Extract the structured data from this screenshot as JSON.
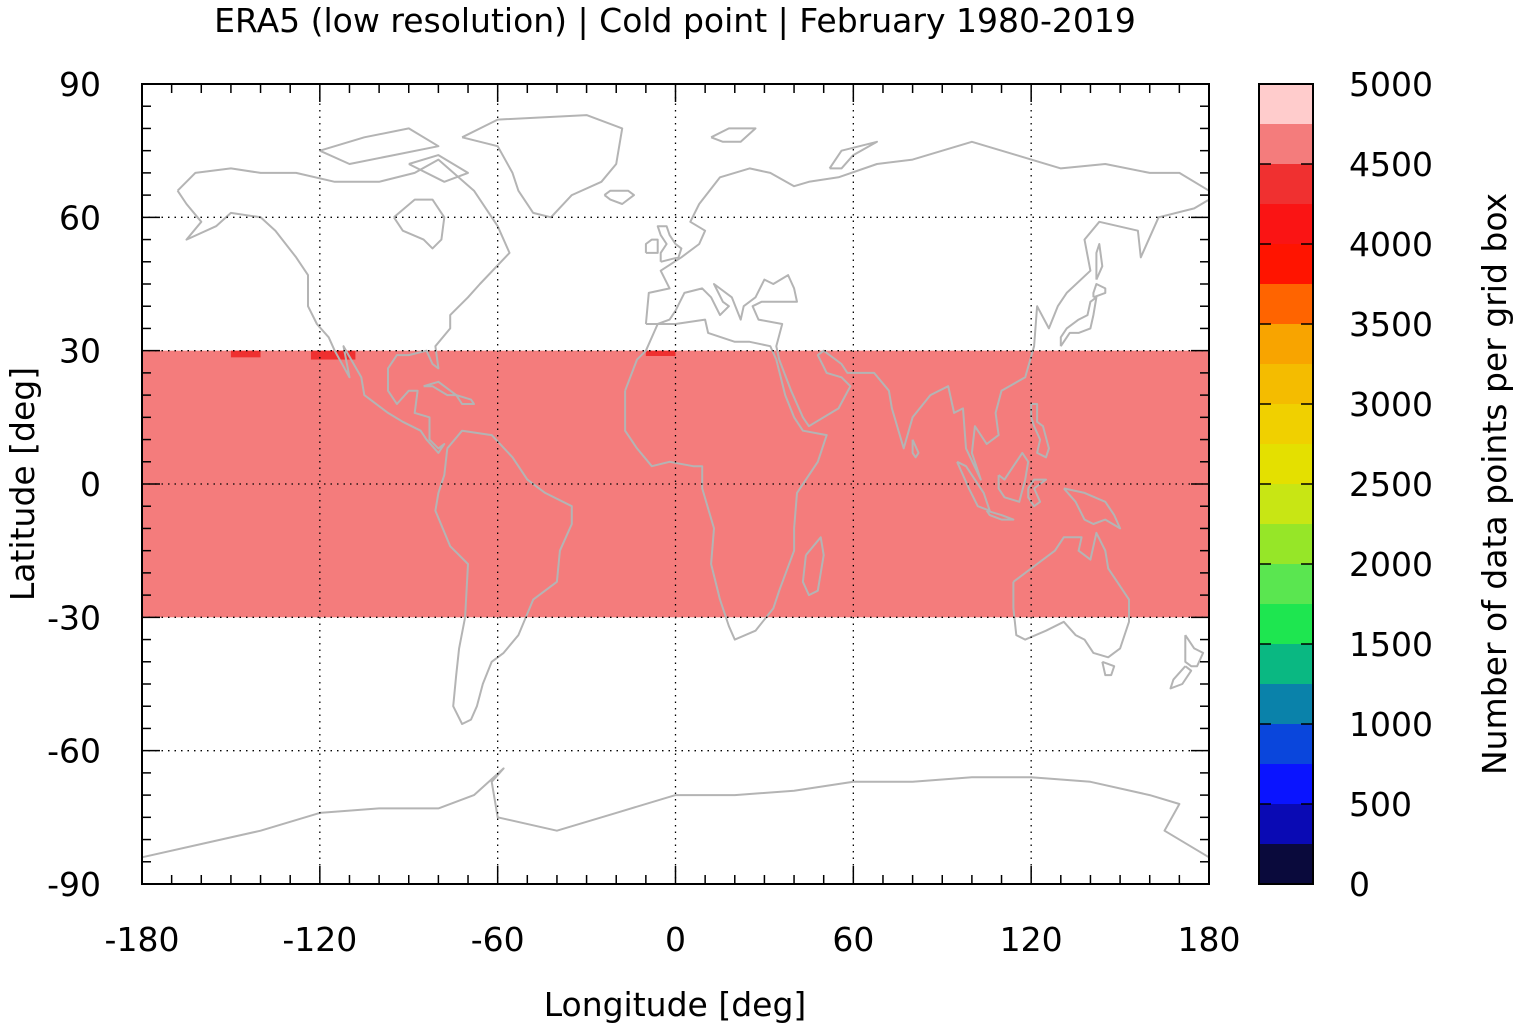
{
  "chart_data": {
    "type": "heatmap",
    "title": "ERA5 (low resolution) | Cold point | February 1980-2019",
    "xlabel": "Longitude [deg]",
    "ylabel": "Latitude [deg]",
    "xlim": [
      -180,
      180
    ],
    "ylim": [
      -90,
      90
    ],
    "x_ticks": [
      "-180",
      "-120",
      "-60",
      "0",
      "60",
      "120",
      "180"
    ],
    "y_ticks": [
      "90",
      "60",
      "30",
      "0",
      "-30",
      "-60",
      "-90"
    ],
    "grid": true,
    "coastlines_color": "#b4b4b4",
    "data_region": {
      "lon_range": [
        -180,
        180
      ],
      "lat_range": [
        -30,
        30
      ],
      "value_approx": 4600,
      "color": "#f47c7c"
    },
    "hotspots": [
      {
        "lon_range": [
          -150,
          -140
        ],
        "lat_range": [
          28.5,
          30
        ],
        "value_approx": 4700,
        "color": "#ef3030"
      },
      {
        "lon_range": [
          -123,
          -108
        ],
        "lat_range": [
          28,
          30
        ],
        "value_approx": 4700,
        "color": "#ef3030"
      },
      {
        "lon_range": [
          -10,
          0
        ],
        "lat_range": [
          28.8,
          30
        ],
        "value_approx": 4700,
        "color": "#ef3030"
      }
    ],
    "colorbar": {
      "label": "Number of data points per grid box",
      "min": 0,
      "max": 5000,
      "tick_labels": [
        "5000",
        "4500",
        "4000",
        "3500",
        "3000",
        "2500",
        "2000",
        "1500",
        "1000",
        "500",
        "0"
      ],
      "colors_top_to_bottom": [
        "#ffcccc",
        "#f47c7c",
        "#f03030",
        "#fa1414",
        "#ff1400",
        "#ff6400",
        "#f8a400",
        "#f4bc00",
        "#f0d000",
        "#e4e000",
        "#c8e614",
        "#96e628",
        "#5ae650",
        "#1ee650",
        "#0ab882",
        "#0a82aa",
        "#0a46dc",
        "#0a14ff",
        "#0a0ab4",
        "#0a0a3c"
      ]
    }
  }
}
